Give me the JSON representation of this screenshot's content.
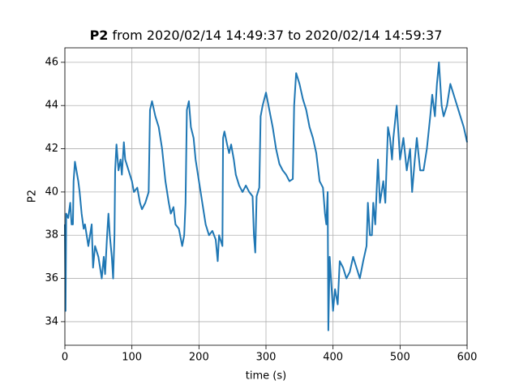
{
  "chart_data": {
    "type": "line",
    "title": {
      "bold": "P2",
      "text": "from 2020/02/14 14:49:37 to 2020/02/14 14:59:37"
    },
    "x_label": "time (s)",
    "y_label": "P2",
    "xlim": [
      0,
      600
    ],
    "ylim": [
      32.91,
      46.67
    ],
    "xticks": [
      0,
      100,
      200,
      300,
      400,
      500,
      600
    ],
    "yticks": [
      34,
      36,
      38,
      40,
      42,
      44,
      46
    ],
    "grid": true,
    "series": [
      {
        "color": "#1f77b4",
        "x": [
          0,
          1,
          2,
          5,
          8,
          10,
          12,
          13,
          15,
          20,
          22,
          25,
          28,
          30,
          35,
          40,
          42,
          45,
          50,
          55,
          58,
          60,
          63,
          65,
          67,
          70,
          72,
          74,
          75,
          77,
          80,
          83,
          85,
          88,
          90,
          95,
          100,
          103,
          108,
          112,
          115,
          120,
          125,
          127,
          130,
          135,
          140,
          145,
          150,
          155,
          158,
          162,
          165,
          170,
          175,
          178,
          180,
          182,
          185,
          188,
          192,
          195,
          200,
          205,
          210,
          215,
          220,
          225,
          228,
          230,
          235,
          236,
          238,
          242,
          245,
          248,
          252,
          255,
          260,
          265,
          270,
          275,
          280,
          282,
          284,
          286,
          290,
          292,
          295,
          300,
          305,
          310,
          315,
          320,
          325,
          330,
          335,
          340,
          342,
          345,
          350,
          355,
          360,
          365,
          370,
          375,
          380,
          385,
          388,
          390,
          392,
          393,
          395,
          398,
          400,
          403,
          407,
          410,
          415,
          420,
          425,
          430,
          435,
          440,
          445,
          450,
          452,
          455,
          458,
          460,
          463,
          467,
          470,
          475,
          478,
          482,
          485,
          488,
          490,
          495,
          498,
          500,
          505,
          510,
          515,
          518,
          522,
          525,
          530,
          535,
          540,
          545,
          548,
          552,
          555,
          558,
          562,
          565,
          570,
          575,
          580,
          585,
          590,
          595,
          600
        ],
        "values": [
          38.5,
          34.5,
          39,
          38.8,
          39.5,
          38.5,
          38.5,
          40.5,
          41.4,
          40.5,
          40,
          39,
          38.3,
          38.5,
          37.5,
          38.5,
          36.5,
          37.5,
          37,
          36,
          37,
          36.2,
          38,
          39,
          38,
          37,
          36,
          38,
          41,
          42.2,
          41,
          41.5,
          40.8,
          42.3,
          41.5,
          41,
          40.5,
          40,
          40.2,
          39.5,
          39.2,
          39.5,
          40,
          43.8,
          44.2,
          43.5,
          43,
          42,
          40.5,
          39.5,
          39,
          39.3,
          38.5,
          38.3,
          37.5,
          38,
          39.5,
          43.8,
          44.2,
          43,
          42.5,
          41.5,
          40.5,
          39.5,
          38.5,
          38,
          38.2,
          37.8,
          36.8,
          38,
          37.5,
          42.5,
          42.8,
          42.2,
          41.8,
          42.2,
          41.5,
          40.8,
          40.3,
          40,
          40.3,
          40,
          39.8,
          38,
          37.2,
          39.8,
          40.2,
          43.5,
          44,
          44.6,
          43.8,
          43,
          42,
          41.3,
          41,
          40.8,
          40.5,
          40.6,
          44,
          45.5,
          45,
          44.3,
          43.8,
          43,
          42.5,
          41.8,
          40.5,
          40.2,
          39,
          38.5,
          40,
          33.6,
          37,
          35.5,
          34.5,
          35.5,
          34.8,
          36.8,
          36.5,
          36,
          36.3,
          37,
          36.5,
          36,
          36.8,
          37.5,
          39.5,
          38,
          38,
          39.5,
          38.5,
          41.5,
          39.5,
          40.5,
          39.5,
          43,
          42.5,
          41.5,
          42.5,
          44,
          42.5,
          41.5,
          42.5,
          41,
          42,
          40,
          41.5,
          42.5,
          41,
          41,
          42,
          43.5,
          44.5,
          43.5,
          45,
          46,
          44,
          43.5,
          44,
          45,
          44.5,
          44,
          43.5,
          43,
          42.3
        ]
      }
    ]
  }
}
